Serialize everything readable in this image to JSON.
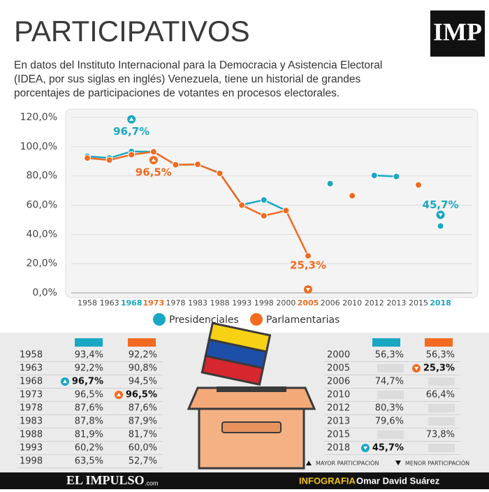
{
  "header": {
    "title": "PARTICIPATIVOS",
    "logo": "IMP",
    "intro": [
      "En datos del Instituto Internacional para la Democracia y Asistencia Electoral",
      "(IDEA, por sus siglas en inglés) Venezuela, tiene un historial de grandes",
      "porcentajes de participaciones de votantes en procesos electorales."
    ]
  },
  "chart_data": {
    "type": "line",
    "categories": [
      "1958",
      "1963",
      "1968",
      "1973",
      "1978",
      "1983",
      "1988",
      "1993",
      "1998",
      "2000",
      "2005",
      "2006",
      "2010",
      "2012",
      "2013",
      "2015",
      "2018"
    ],
    "series": [
      {
        "name": "Presidenciales",
        "color": "#1aa7c3",
        "values": [
          93.4,
          92.2,
          96.7,
          96.5,
          87.6,
          87.8,
          81.9,
          60.2,
          63.5,
          56.3,
          null,
          74.7,
          null,
          80.3,
          79.6,
          null,
          45.7
        ],
        "value_labels": [
          "93,4%",
          "92,2%",
          "96,7%",
          "96,5%",
          "87,6%",
          "87,8%",
          "81,9%",
          "60,2%",
          "63,5%",
          "56,3%",
          null,
          "74,7%",
          null,
          "80,3%",
          "79,6%",
          null,
          "45,7%"
        ]
      },
      {
        "name": "Parlamentarias",
        "color": "#f26b21",
        "values": [
          92.2,
          90.8,
          94.5,
          96.5,
          87.6,
          87.9,
          81.7,
          60.0,
          52.7,
          56.3,
          25.3,
          null,
          66.4,
          null,
          null,
          73.8,
          null
        ],
        "value_labels": [
          "92,2%",
          "90,8%",
          "94,5%",
          "96,5%",
          "87,6%",
          "87,9%",
          "81,7%",
          "60,0%",
          "52,7%",
          "56,3%",
          "25,3%",
          null,
          "66,4%",
          null,
          null,
          "73,8%",
          null
        ]
      }
    ],
    "ylim": [
      0,
      120
    ],
    "yticks": [
      {
        "value": 0,
        "label": "0,0%"
      },
      {
        "value": 20,
        "label": "20,0%"
      },
      {
        "value": 40,
        "label": "40,0%"
      },
      {
        "value": 60,
        "label": "60,0%"
      },
      {
        "value": 80,
        "label": "80,0%"
      },
      {
        "value": 100,
        "label": "100,0%"
      },
      {
        "value": 120,
        "label": "120,0%"
      }
    ],
    "grid": true
  },
  "key": {
    "max": "MAYOR PARTICIPACIÓN",
    "min": "MENOR PARTICIPACIÓN"
  },
  "footer": {
    "brand": "EL IMPULSO",
    "brand_suffix": ".com",
    "credit_label": "INFOGRAFIA",
    "credit_name": "Omar David Suárez"
  }
}
